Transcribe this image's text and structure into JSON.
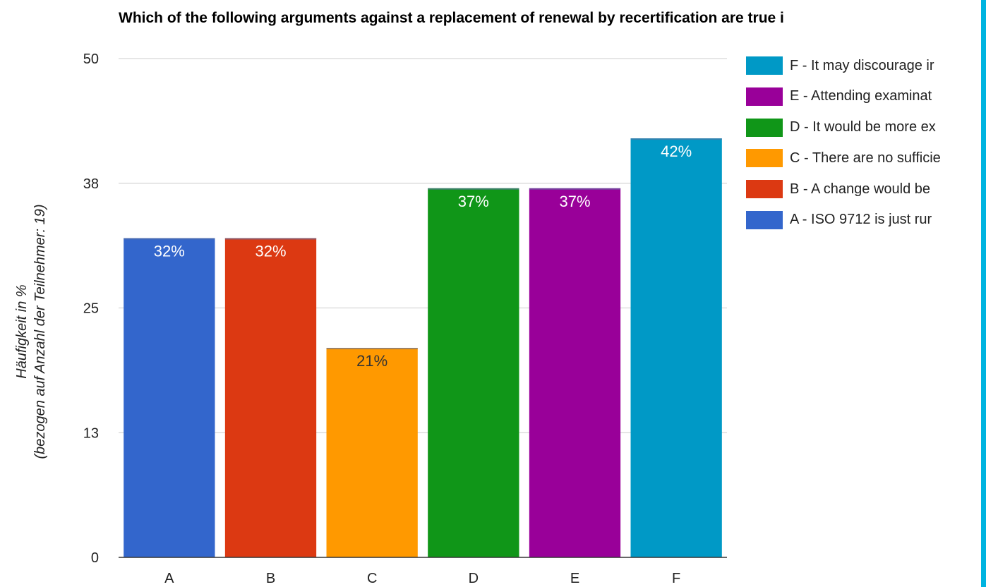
{
  "chart_data": {
    "type": "bar",
    "title": "Which of the following arguments against a replacement of renewal by recertification are true i",
    "ylabel": [
      "Häufigkeit in %",
      "(bezogen auf Anzahl der Teilnehmer: 19)"
    ],
    "xlabel": "",
    "ylim": [
      0,
      50
    ],
    "yticks": [
      "0",
      "13",
      "25",
      "38",
      "50"
    ],
    "ytick_values": [
      0,
      12.5,
      25,
      37.5,
      50
    ],
    "grid": true,
    "legend_position": "right",
    "categories": [
      "A",
      "B",
      "C",
      "D",
      "E",
      "F"
    ],
    "values": [
      32,
      32,
      21,
      37,
      37,
      42
    ],
    "data_labels": [
      "32%",
      "32%",
      "21%",
      "37%",
      "37%",
      "42%"
    ],
    "colors": [
      "#3366cc",
      "#dc3912",
      "#ff9900",
      "#109618",
      "#990099",
      "#0099c6"
    ],
    "label_colors": [
      "#ffffff",
      "#ffffff",
      "#333333",
      "#ffffff",
      "#ffffff",
      "#ffffff"
    ],
    "legend": [
      {
        "label": "F - It may discourage ir",
        "color": "#0099c6"
      },
      {
        "label": "E - Attending examinat",
        "color": "#990099"
      },
      {
        "label": "D - It would be more ex",
        "color": "#109618"
      },
      {
        "label": "C - There are no sufficie",
        "color": "#ff9900"
      },
      {
        "label": "B - A change would be",
        "color": "#dc3912"
      },
      {
        "label": "A - ISO 9712 is just rur",
        "color": "#3366cc"
      }
    ]
  }
}
